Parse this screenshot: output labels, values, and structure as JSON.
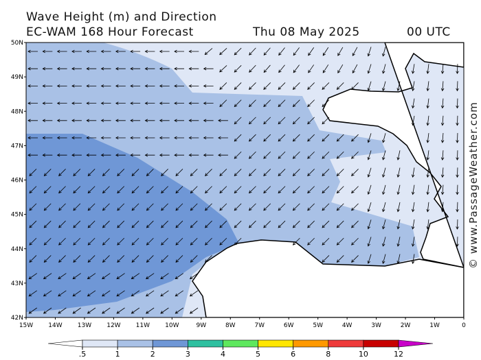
{
  "header": {
    "title": "Wave Height (m) and Direction",
    "model": "EC-WAM 168 Hour Forecast",
    "date": "Thu 08 May 2025",
    "time": "00 UTC"
  },
  "map": {
    "lat_labels": [
      "50N",
      "49N",
      "48N",
      "47N",
      "46N",
      "45N",
      "44N",
      "43N",
      "42N"
    ],
    "lon_labels": [
      "15W",
      "14W",
      "13W",
      "12W",
      "11W",
      "10W",
      "9W",
      "8W",
      "7W",
      "6W",
      "5W",
      "4W",
      "3W",
      "2W",
      "1W",
      "0"
    ]
  },
  "legend": {
    "ticks": [
      {
        "value": 0.5,
        "label": ".5"
      },
      1,
      2,
      3,
      4,
      5,
      6,
      8,
      10,
      12
    ],
    "colors": [
      "#dfe7f6",
      "#a9c1e6",
      "#6f97d6",
      "#2ec0a0",
      "#5ee85e",
      "#ffe600",
      "#ff9900",
      "#ee3a3a",
      "#c80000"
    ],
    "over_color": "#c800c8"
  },
  "watermark": "© www.PassageWeather.com"
}
